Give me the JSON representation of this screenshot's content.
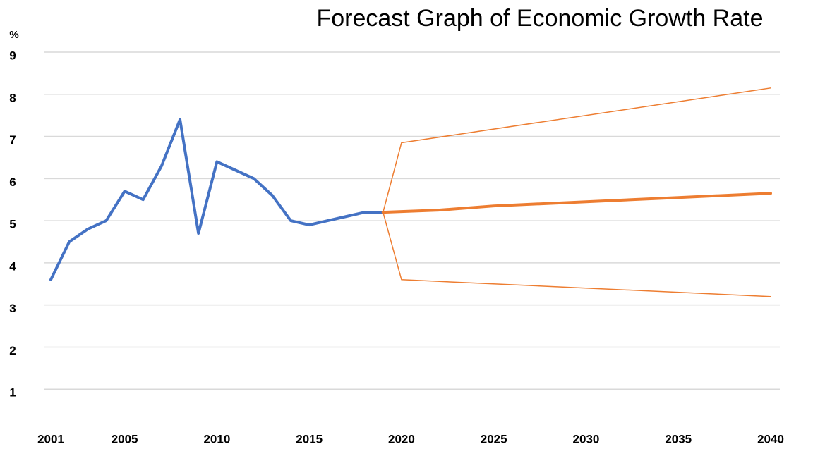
{
  "chart_data": {
    "type": "line",
    "title": "Forecast Graph of Economic Growth Rate",
    "y_label": "%",
    "xlim": [
      2001,
      2040
    ],
    "xticks": [
      2001,
      2005,
      2010,
      2015,
      2020,
      2025,
      2030,
      2035,
      2040
    ],
    "ylim": [
      0,
      9
    ],
    "yticks": [
      1,
      2,
      3,
      4,
      5,
      6,
      7,
      8,
      9
    ],
    "grid": true,
    "series": [
      {
        "color": "#4472c4",
        "width": 4,
        "x": [
          2001,
          2002,
          2003,
          2004,
          2005,
          2006,
          2007,
          2008,
          2009,
          2010,
          2011,
          2012,
          2013,
          2014,
          2015,
          2016,
          2017,
          2018,
          2019
        ],
        "values": [
          3.6,
          4.5,
          4.8,
          5.0,
          5.7,
          5.5,
          6.3,
          7.4,
          4.7,
          6.4,
          6.2,
          6.0,
          5.6,
          5.0,
          4.9,
          5.0,
          5.1,
          5.2,
          5.2
        ]
      },
      {
        "color": "#ed7d31",
        "width": 4,
        "x": [
          2019,
          2022,
          2025,
          2030,
          2035,
          2040
        ],
        "values": [
          5.2,
          5.25,
          5.35,
          5.45,
          5.55,
          5.65
        ]
      },
      {
        "color": "#ed7d31",
        "width": 1.5,
        "x": [
          2019,
          2020,
          2040
        ],
        "values": [
          5.2,
          6.85,
          8.15
        ]
      },
      {
        "color": "#ed7d31",
        "width": 1.5,
        "x": [
          2019,
          2020,
          2040
        ],
        "values": [
          5.2,
          3.6,
          3.2
        ]
      }
    ]
  }
}
